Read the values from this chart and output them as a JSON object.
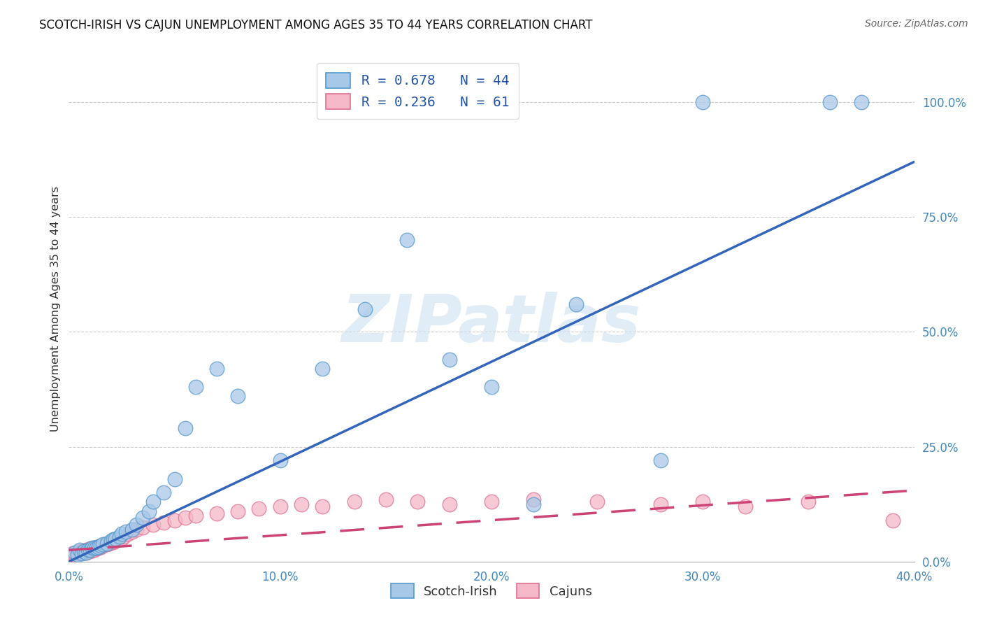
{
  "title": "SCOTCH-IRISH VS CAJUN UNEMPLOYMENT AMONG AGES 35 TO 44 YEARS CORRELATION CHART",
  "source": "Source: ZipAtlas.com",
  "ylabel": "Unemployment Among Ages 35 to 44 years",
  "xmin": 0.0,
  "xmax": 0.4,
  "ymin": 0.0,
  "ymax": 1.1,
  "xticks": [
    0.0,
    0.1,
    0.2,
    0.3,
    0.4
  ],
  "xtick_labels": [
    "0.0%",
    "10.0%",
    "20.0%",
    "30.0%",
    "40.0%"
  ],
  "yticks_right": [
    0.0,
    0.25,
    0.5,
    0.75,
    1.0
  ],
  "ytick_labels_right": [
    "0.0%",
    "25.0%",
    "50.0%",
    "75.0%",
    "100.0%"
  ],
  "blue_fill_color": "#a8c8e8",
  "blue_edge_color": "#5599cc",
  "pink_fill_color": "#f5b8c8",
  "pink_edge_color": "#e07090",
  "blue_line_color": "#3366bb",
  "pink_line_color": "#cc4477",
  "scotch_irish_R": 0.678,
  "scotch_irish_N": 44,
  "cajun_R": 0.236,
  "cajun_N": 61,
  "legend_label_blue": "Scotch-Irish",
  "legend_label_pink": "Cajuns",
  "watermark": "ZIPatlas",
  "background_color": "#ffffff",
  "grid_color": "#cccccc",
  "scotch_irish_x": [
    0.003,
    0.004,
    0.005,
    0.006,
    0.007,
    0.008,
    0.009,
    0.01,
    0.011,
    0.012,
    0.013,
    0.014,
    0.015,
    0.016,
    0.018,
    0.02,
    0.021,
    0.022,
    0.024,
    0.025,
    0.027,
    0.03,
    0.032,
    0.035,
    0.038,
    0.04,
    0.045,
    0.05,
    0.055,
    0.06,
    0.07,
    0.08,
    0.1,
    0.12,
    0.14,
    0.16,
    0.18,
    0.2,
    0.22,
    0.24,
    0.28,
    0.3,
    0.36,
    0.375
  ],
  "scotch_irish_y": [
    0.02,
    0.015,
    0.025,
    0.018,
    0.022,
    0.02,
    0.025,
    0.025,
    0.03,
    0.03,
    0.03,
    0.032,
    0.035,
    0.038,
    0.04,
    0.045,
    0.048,
    0.05,
    0.055,
    0.06,
    0.065,
    0.07,
    0.08,
    0.095,
    0.11,
    0.13,
    0.15,
    0.18,
    0.29,
    0.38,
    0.42,
    0.36,
    0.22,
    0.42,
    0.55,
    0.7,
    0.44,
    0.38,
    0.125,
    0.56,
    0.22,
    1.0,
    1.0,
    1.0
  ],
  "cajun_x": [
    0.002,
    0.003,
    0.004,
    0.005,
    0.005,
    0.006,
    0.006,
    0.007,
    0.007,
    0.008,
    0.008,
    0.009,
    0.009,
    0.01,
    0.01,
    0.011,
    0.011,
    0.012,
    0.012,
    0.013,
    0.013,
    0.014,
    0.015,
    0.015,
    0.016,
    0.017,
    0.018,
    0.019,
    0.02,
    0.021,
    0.022,
    0.023,
    0.025,
    0.026,
    0.028,
    0.03,
    0.032,
    0.035,
    0.04,
    0.045,
    0.05,
    0.055,
    0.06,
    0.07,
    0.08,
    0.09,
    0.1,
    0.11,
    0.12,
    0.135,
    0.15,
    0.165,
    0.18,
    0.2,
    0.22,
    0.25,
    0.28,
    0.3,
    0.32,
    0.35,
    0.39
  ],
  "cajun_y": [
    0.018,
    0.015,
    0.018,
    0.02,
    0.022,
    0.02,
    0.022,
    0.02,
    0.022,
    0.02,
    0.025,
    0.022,
    0.025,
    0.022,
    0.028,
    0.025,
    0.028,
    0.025,
    0.03,
    0.028,
    0.032,
    0.03,
    0.032,
    0.035,
    0.035,
    0.038,
    0.038,
    0.04,
    0.042,
    0.042,
    0.045,
    0.048,
    0.05,
    0.055,
    0.06,
    0.065,
    0.07,
    0.075,
    0.08,
    0.085,
    0.09,
    0.095,
    0.1,
    0.105,
    0.11,
    0.115,
    0.12,
    0.125,
    0.12,
    0.13,
    0.135,
    0.13,
    0.125,
    0.13,
    0.135,
    0.13,
    0.125,
    0.13,
    0.12,
    0.13,
    0.09
  ],
  "blue_trend_x0": 0.0,
  "blue_trend_y0": 0.0,
  "blue_trend_x1": 0.4,
  "blue_trend_y1": 0.87,
  "pink_trend_x0": 0.0,
  "pink_trend_y0": 0.025,
  "pink_trend_x1": 0.4,
  "pink_trend_y1": 0.155
}
